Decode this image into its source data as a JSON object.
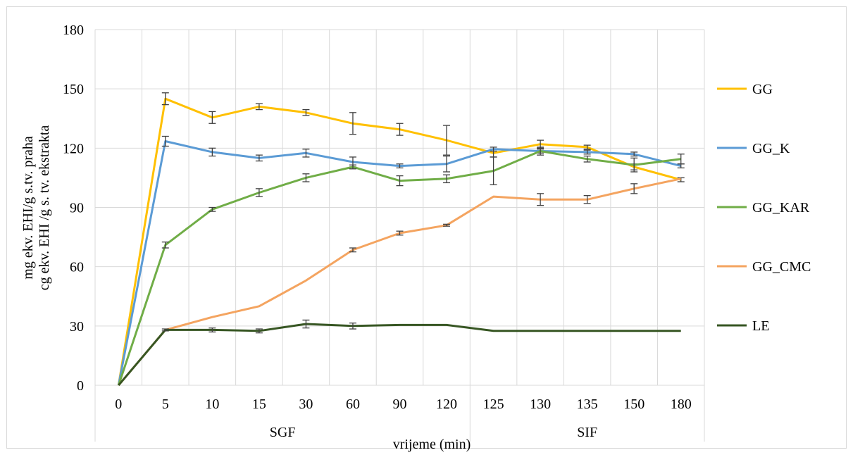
{
  "chart_data": {
    "type": "line",
    "categories": [
      "0",
      "5",
      "10",
      "15",
      "30",
      "60",
      "90",
      "120",
      "125",
      "130",
      "135",
      "150",
      "180"
    ],
    "groups": [
      {
        "label": "SGF",
        "from": 0,
        "to": 7
      },
      {
        "label": "SIF",
        "from": 8,
        "to": 12
      }
    ],
    "xlabel": "vrijeme (min)",
    "ylabel_lines": [
      "mg ekv. EHI/g s.tv. praha",
      "cg ekv. EHI /g s. tv. ekstrakta"
    ],
    "ylim": [
      0,
      180
    ],
    "yticks": [
      "0",
      "30",
      "60",
      "90",
      "120",
      "150",
      "180"
    ],
    "grid": true,
    "legend_position": "right",
    "series": [
      {
        "name": "GG",
        "color": "#FFC000",
        "values": [
          0,
          145,
          135.5,
          141,
          138,
          132.5,
          129.5,
          124,
          117.5,
          122,
          120.5,
          110.5,
          104
        ],
        "errors": [
          0,
          3,
          3,
          1.5,
          1.5,
          5.5,
          3,
          7.5,
          2,
          2,
          1,
          1.5,
          1
        ]
      },
      {
        "name": "GG_K",
        "color": "#5B9BD5",
        "values": [
          0,
          123.5,
          118,
          115,
          117.5,
          113,
          111,
          112,
          119.5,
          118.5,
          118,
          117,
          111
        ],
        "errors": [
          0,
          2.5,
          2,
          1.5,
          2,
          2.5,
          1,
          4,
          1,
          1,
          1,
          1,
          1
        ]
      },
      {
        "name": "GG_KAR",
        "color": "#70AD47",
        "values": [
          0,
          71,
          89,
          97.5,
          105,
          110.5,
          103.5,
          104.5,
          108.5,
          118.5,
          114.5,
          111.5,
          114.5
        ],
        "errors": [
          0,
          1.5,
          1,
          2,
          2,
          1,
          2.5,
          2,
          7,
          2,
          1.5,
          3.5,
          2.5
        ]
      },
      {
        "name": "GG_CMC",
        "color": "#F4A460",
        "values": [
          0,
          28,
          34.5,
          40,
          53,
          68.5,
          77,
          81,
          95.5,
          94,
          94,
          99.5,
          104.5
        ],
        "errors": [
          0,
          0,
          0,
          0,
          0,
          1,
          1,
          0.5,
          0,
          3,
          2,
          2.5,
          0
        ]
      },
      {
        "name": "LE",
        "color": "#375623",
        "values": [
          0,
          28,
          28,
          27.5,
          31,
          30,
          30.5,
          30.5,
          27.5,
          27.5,
          27.5,
          27.5,
          27.5
        ],
        "errors": [
          0,
          0.5,
          1,
          1,
          2,
          1.5,
          0,
          0,
          0,
          0,
          0,
          0,
          0
        ]
      }
    ]
  }
}
